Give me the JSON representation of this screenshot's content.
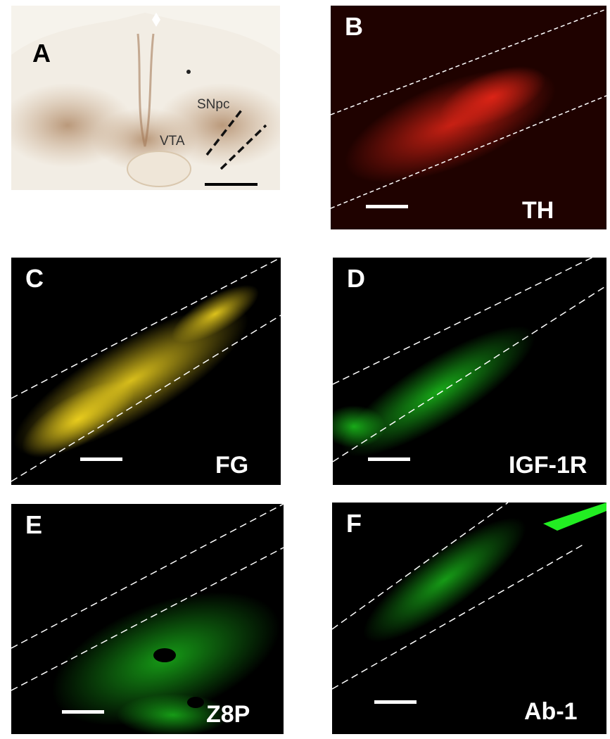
{
  "panels": {
    "a": {
      "letter": "A",
      "region_snpc": "SNpc",
      "region_vta": "VTA"
    },
    "b": {
      "letter": "B",
      "marker": "TH",
      "color": "#ff2a1a"
    },
    "c": {
      "letter": "C",
      "marker": "FG",
      "color": "#ffe020"
    },
    "d": {
      "letter": "D",
      "marker": "IGF-1R",
      "color": "#22ee22"
    },
    "e": {
      "letter": "E",
      "marker": "Z8P",
      "color": "#22ee22"
    },
    "f": {
      "letter": "F",
      "marker": "Ab-1",
      "color": "#22ee22"
    }
  }
}
